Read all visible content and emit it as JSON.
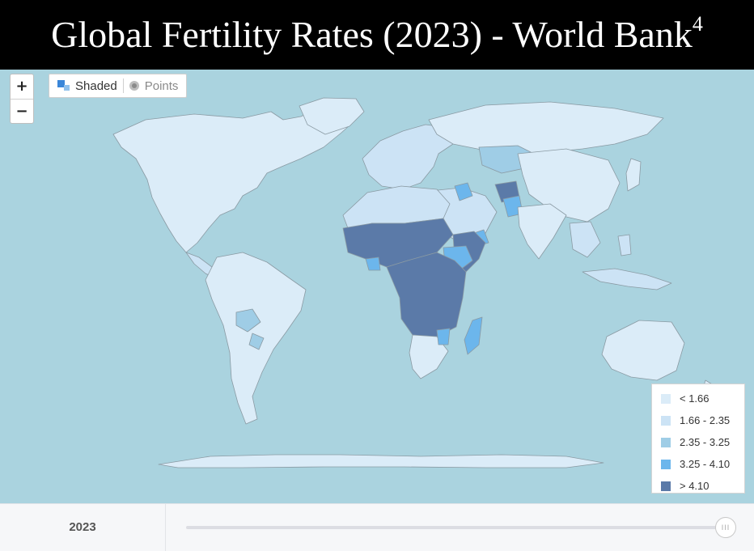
{
  "title": {
    "text": "Global Fertility Rates (2023) - World Bank",
    "footnote": "4"
  },
  "map": {
    "zoom_in_label": "+",
    "zoom_out_label": "−",
    "mode_shaded_label": "Shaded",
    "mode_points_label": "Points",
    "selected_mode": "Shaded",
    "ocean_color": "#aad3df",
    "border_color": "#8a9aa3"
  },
  "legend": {
    "items": [
      {
        "label": "< 1.66",
        "color": "#dbecf8"
      },
      {
        "label": "1.66 - 2.35",
        "color": "#cce3f5"
      },
      {
        "label": "2.35 - 3.25",
        "color": "#9fcde6"
      },
      {
        "label": "3.25 - 4.10",
        "color": "#6cb6ec"
      },
      {
        "label": "> 4.10",
        "color": "#5b7aa8"
      }
    ]
  },
  "timeline": {
    "year": "2023",
    "thumb_glyph": "III",
    "position_fraction": 1.0
  }
}
